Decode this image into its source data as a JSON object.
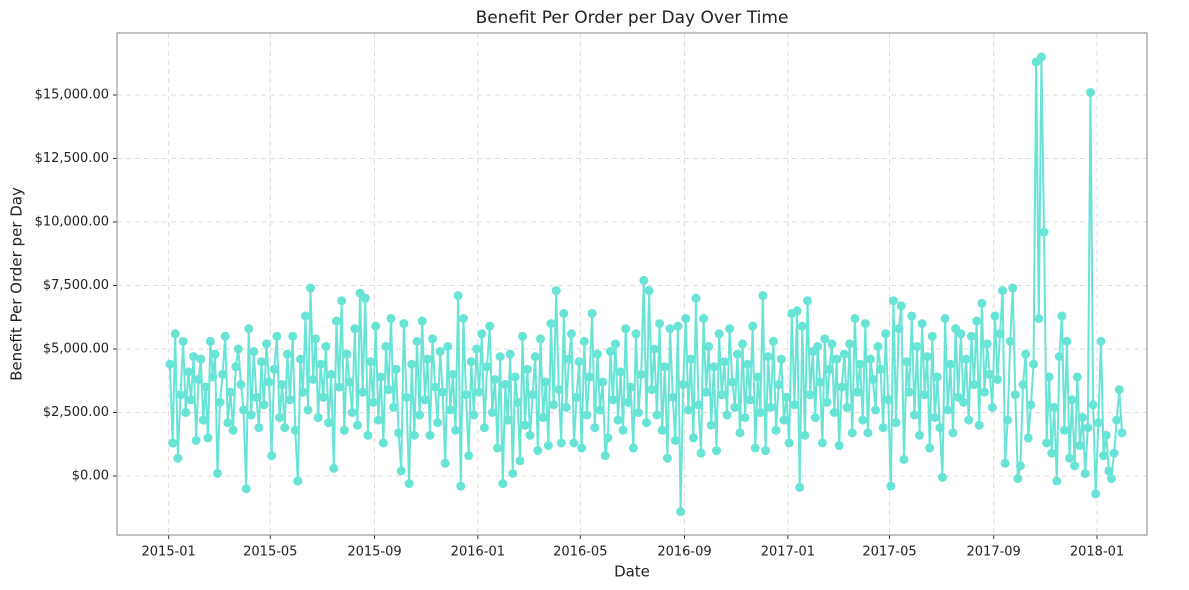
{
  "chart_data": {
    "type": "line",
    "title": "Benefit Per Order per Day Over Time",
    "x_label": "Date",
    "y_label": "Benefit Per Order per Day",
    "color": "#68e4d6",
    "grid": true,
    "xlim": [
      "2014-11",
      "2018-03"
    ],
    "xticks": [
      "2015-01",
      "2015-05",
      "2015-09",
      "2016-01",
      "2016-05",
      "2016-09",
      "2017-01",
      "2017-05",
      "2017-09",
      "2018-01"
    ],
    "ylim": [
      -2323,
      17441
    ],
    "yticks": [
      {
        "value": 0,
        "label": "$0.00"
      },
      {
        "value": 2500,
        "label": "$2,500.00"
      },
      {
        "value": 5000,
        "label": "$5,000.00"
      },
      {
        "value": 7500,
        "label": "$7,500.00"
      },
      {
        "value": 10000,
        "label": "$10,000.00"
      },
      {
        "value": 12500,
        "label": "$12,500.00"
      },
      {
        "value": 15000,
        "label": "$15,000.00"
      }
    ],
    "x": [
      "2015-01",
      "2015-01",
      "2015-01",
      "2015-01",
      "2015-01",
      "2015-01",
      "2015-01",
      "2015-01",
      "2015-01",
      "2015-01",
      "2015-02",
      "2015-02",
      "2015-02",
      "2015-02",
      "2015-02",
      "2015-02",
      "2015-02",
      "2015-02",
      "2015-02",
      "2015-02",
      "2015-03",
      "2015-03",
      "2015-03",
      "2015-03",
      "2015-03",
      "2015-03",
      "2015-03",
      "2015-03",
      "2015-03",
      "2015-03",
      "2015-04",
      "2015-04",
      "2015-04",
      "2015-04",
      "2015-04",
      "2015-04",
      "2015-04",
      "2015-04",
      "2015-04",
      "2015-04",
      "2015-05",
      "2015-05",
      "2015-05",
      "2015-05",
      "2015-05",
      "2015-05",
      "2015-05",
      "2015-05",
      "2015-05",
      "2015-05",
      "2015-06",
      "2015-06",
      "2015-06",
      "2015-06",
      "2015-06",
      "2015-06",
      "2015-06",
      "2015-06",
      "2015-06",
      "2015-06",
      "2015-07",
      "2015-07",
      "2015-07",
      "2015-07",
      "2015-07",
      "2015-07",
      "2015-07",
      "2015-07",
      "2015-07",
      "2015-07",
      "2015-08",
      "2015-08",
      "2015-08",
      "2015-08",
      "2015-08",
      "2015-08",
      "2015-08",
      "2015-08",
      "2015-08",
      "2015-08",
      "2015-09",
      "2015-09",
      "2015-09",
      "2015-09",
      "2015-09",
      "2015-09",
      "2015-09",
      "2015-09",
      "2015-09",
      "2015-09",
      "2015-10",
      "2015-10",
      "2015-10",
      "2015-10",
      "2015-10",
      "2015-10",
      "2015-10",
      "2015-10",
      "2015-10",
      "2015-10",
      "2015-11",
      "2015-11",
      "2015-11",
      "2015-11",
      "2015-11",
      "2015-11",
      "2015-11",
      "2015-11",
      "2015-11",
      "2015-11",
      "2015-12",
      "2015-12",
      "2015-12",
      "2015-12",
      "2015-12",
      "2015-12",
      "2015-12",
      "2015-12",
      "2015-12",
      "2015-12",
      "2016-01",
      "2016-01",
      "2016-01",
      "2016-01",
      "2016-01",
      "2016-01",
      "2016-01",
      "2016-01",
      "2016-01",
      "2016-01",
      "2016-02",
      "2016-02",
      "2016-02",
      "2016-02",
      "2016-02",
      "2016-02",
      "2016-02",
      "2016-02",
      "2016-02",
      "2016-02",
      "2016-03",
      "2016-03",
      "2016-03",
      "2016-03",
      "2016-03",
      "2016-03",
      "2016-03",
      "2016-03",
      "2016-03",
      "2016-03",
      "2016-04",
      "2016-04",
      "2016-04",
      "2016-04",
      "2016-04",
      "2016-04",
      "2016-04",
      "2016-04",
      "2016-04",
      "2016-04",
      "2016-05",
      "2016-05",
      "2016-05",
      "2016-05",
      "2016-05",
      "2016-05",
      "2016-05",
      "2016-05",
      "2016-05",
      "2016-05",
      "2016-06",
      "2016-06",
      "2016-06",
      "2016-06",
      "2016-06",
      "2016-06",
      "2016-06",
      "2016-06",
      "2016-06",
      "2016-06",
      "2016-07",
      "2016-07",
      "2016-07",
      "2016-07",
      "2016-07",
      "2016-07",
      "2016-07",
      "2016-07",
      "2016-07",
      "2016-07",
      "2016-08",
      "2016-08",
      "2016-08",
      "2016-08",
      "2016-08",
      "2016-08",
      "2016-08",
      "2016-08",
      "2016-08",
      "2016-08",
      "2016-09",
      "2016-09",
      "2016-09",
      "2016-09",
      "2016-09",
      "2016-09",
      "2016-09",
      "2016-09",
      "2016-09",
      "2016-09",
      "2016-10",
      "2016-10",
      "2016-10",
      "2016-10",
      "2016-10",
      "2016-10",
      "2016-10",
      "2016-10",
      "2016-10",
      "2016-10",
      "2016-11",
      "2016-11",
      "2016-11",
      "2016-11",
      "2016-11",
      "2016-11",
      "2016-11",
      "2016-11",
      "2016-11",
      "2016-11",
      "2016-12",
      "2016-12",
      "2016-12",
      "2016-12",
      "2016-12",
      "2016-12",
      "2016-12",
      "2016-12",
      "2016-12",
      "2016-12",
      "2017-01",
      "2017-01",
      "2017-01",
      "2017-01",
      "2017-01",
      "2017-01",
      "2017-01",
      "2017-01",
      "2017-01",
      "2017-01",
      "2017-02",
      "2017-02",
      "2017-02",
      "2017-02",
      "2017-02",
      "2017-02",
      "2017-02",
      "2017-02",
      "2017-02",
      "2017-02",
      "2017-03",
      "2017-03",
      "2017-03",
      "2017-03",
      "2017-03",
      "2017-03",
      "2017-03",
      "2017-03",
      "2017-03",
      "2017-03",
      "2017-04",
      "2017-04",
      "2017-04",
      "2017-04",
      "2017-04",
      "2017-04",
      "2017-04",
      "2017-04",
      "2017-04",
      "2017-04",
      "2017-05",
      "2017-05",
      "2017-05",
      "2017-05",
      "2017-05",
      "2017-05",
      "2017-05",
      "2017-05",
      "2017-05",
      "2017-05",
      "2017-06",
      "2017-06",
      "2017-06",
      "2017-06",
      "2017-06",
      "2017-06",
      "2017-06",
      "2017-06",
      "2017-06",
      "2017-06",
      "2017-07",
      "2017-07",
      "2017-07",
      "2017-07",
      "2017-07",
      "2017-07",
      "2017-07",
      "2017-07",
      "2017-07",
      "2017-07",
      "2017-08",
      "2017-08",
      "2017-08",
      "2017-08",
      "2017-08",
      "2017-08",
      "2017-08",
      "2017-08",
      "2017-08",
      "2017-08",
      "2017-09",
      "2017-09",
      "2017-09",
      "2017-09",
      "2017-09",
      "2017-09",
      "2017-09",
      "2017-09",
      "2017-09",
      "2017-09",
      "2017-10",
      "2017-10",
      "2017-10",
      "2017-10",
      "2017-10",
      "2017-10",
      "2017-10",
      "2017-10",
      "2017-10",
      "2017-10",
      "2017-11",
      "2017-11",
      "2017-11",
      "2017-11",
      "2017-11",
      "2017-11",
      "2017-11",
      "2017-11",
      "2017-11",
      "2017-11",
      "2017-12",
      "2017-12",
      "2017-12",
      "2017-12",
      "2017-12",
      "2017-12",
      "2017-12",
      "2017-12",
      "2017-12",
      "2017-12",
      "2018-01",
      "2018-01",
      "2018-01",
      "2018-01",
      "2018-01",
      "2018-01",
      "2018-01",
      "2018-01",
      "2018-01",
      "2018-01"
    ],
    "values": [
      4400,
      1300,
      5600,
      700,
      3200,
      5300,
      2500,
      4100,
      3000,
      4700,
      1400,
      3800,
      4600,
      2200,
      3500,
      1500,
      5300,
      3900,
      4800,
      100,
      2900,
      4000,
      5500,
      2100,
      3300,
      1800,
      4300,
      5000,
      3600,
      2600,
      -500,
      5800,
      2400,
      4900,
      3100,
      1900,
      4500,
      2800,
      5200,
      3700,
      800,
      4200,
      5500,
      2300,
      3600,
      1900,
      4800,
      3000,
      5500,
      1800,
      -200,
      4600,
      3300,
      6300,
      2600,
      7400,
      3800,
      5400,
      2300,
      4400,
      3100,
      5100,
      2100,
      4000,
      300,
      6100,
      3500,
      6900,
      1800,
      4800,
      3700,
      2500,
      5800,
      2000,
      7200,
      3300,
      7000,
      1600,
      4500,
      2900,
      5900,
      2200,
      3900,
      1300,
      5100,
      3400,
      6200,
      2700,
      4200,
      1700,
      200,
      6000,
      3100,
      -300,
      4400,
      1600,
      5300,
      2400,
      6100,
      3000,
      4600,
      1600,
      5400,
      3500,
      2100,
      4900,
      3300,
      500,
      5100,
      2600,
      4000,
      1800,
      7100,
      -400,
      6200,
      3200,
      800,
      4500,
      2400,
      5000,
      3300,
      5600,
      1900,
      4300,
      5900,
      2500,
      3800,
      1100,
      4700,
      -300,
      3600,
      2200,
      4800,
      100,
      3900,
      2900,
      600,
      5500,
      2000,
      4200,
      1600,
      3200,
      4700,
      1000,
      5400,
      2300,
      3700,
      1200,
      6000,
      2800,
      7300,
      3400,
      1300,
      6400,
      2700,
      4600,
      5600,
      1300,
      3100,
      4500,
      1100,
      5300,
      2400,
      3900,
      6400,
      1900,
      4800,
      2600,
      3700,
      800,
      1500,
      4900,
      3000,
      5200,
      2200,
      4100,
      1800,
      5800,
      2900,
      3500,
      1100,
      5600,
      2500,
      4000,
      7700,
      2100,
      7300,
      3400,
      5000,
      2400,
      6000,
      1800,
      4300,
      700,
      5800,
      3100,
      1400,
      5900,
      -1400,
      3600,
      6200,
      2600,
      4600,
      1500,
      7000,
      2800,
      900,
      6200,
      3300,
      5100,
      2000,
      4300,
      1000,
      5600,
      3200,
      4500,
      2400,
      5800,
      3700,
      2700,
      4800,
      1700,
      5200,
      2300,
      4400,
      3000,
      5900,
      1100,
      3900,
      2500,
      7100,
      1000,
      4700,
      2700,
      5300,
      1800,
      3600,
      4600,
      2200,
      3100,
      1300,
      6400,
      2800,
      6500,
      -450,
      5900,
      1600,
      6900,
      3200,
      4900,
      2300,
      5100,
      3700,
      1300,
      5400,
      2900,
      4200,
      5200,
      2500,
      4600,
      1200,
      3500,
      4800,
      2700,
      5200,
      1700,
      6200,
      3300,
      4400,
      2200,
      6000,
      1700,
      4600,
      3800,
      2600,
      5100,
      4200,
      1900,
      5600,
      3000,
      -400,
      6900,
      2100,
      5800,
      6700,
      650,
      4500,
      3300,
      6300,
      2400,
      5100,
      1600,
      6000,
      3200,
      4700,
      1100,
      5500,
      2300,
      3900,
      1900,
      -50,
      6200,
      2600,
      4400,
      1700,
      5800,
      3100,
      5600,
      2900,
      4600,
      2200,
      5500,
      3600,
      6100,
      2000,
      6800,
      3300,
      5200,
      4000,
      2700,
      6300,
      3800,
      5600,
      7300,
      500,
      2200,
      5300,
      7400,
      3200,
      -100,
      400,
      3600,
      4800,
      1500,
      2800,
      4400,
      16300,
      6200,
      16500,
      9600,
      1300,
      3900,
      900,
      2700,
      -200,
      4700,
      6300,
      1800,
      5300,
      700,
      3000,
      400,
      3900,
      1200,
      2300,
      100,
      1900,
      15100,
      2800,
      -700,
      2100,
      5300,
      800,
      1600,
      200,
      -100,
      900,
      2200,
      3400,
      1700
    ]
  }
}
